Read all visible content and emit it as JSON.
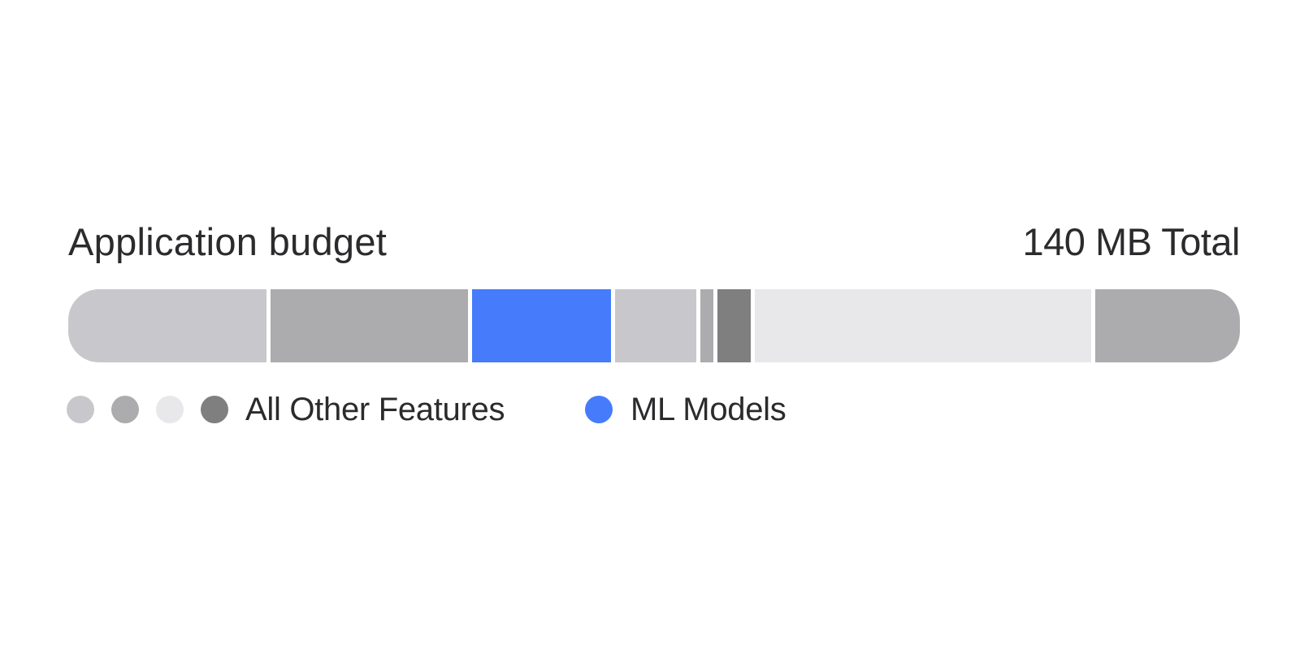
{
  "chart_data": {
    "type": "bar",
    "orientation": "horizontal-stacked",
    "title": "Application budget",
    "total_label": "140 MB Total",
    "total_mb": 140,
    "segments": [
      {
        "series": "All Other Features",
        "value": 23.7,
        "color": "#c8c8cc"
      },
      {
        "series": "All Other Features",
        "value": 23.7,
        "color": "#acacae"
      },
      {
        "series": "ML Models",
        "value": 16.6,
        "color": "#467cfc"
      },
      {
        "series": "All Other Features",
        "value": 9.8,
        "color": "#c8c8cc"
      },
      {
        "series": "All Other Features",
        "value": 1.5,
        "color": "#acacae"
      },
      {
        "series": "All Other Features",
        "value": 4.0,
        "color": "#7f7f7f"
      },
      {
        "series": "All Other Features",
        "value": 40.3,
        "color": "#e8e8ea"
      },
      {
        "series": "All Other Features",
        "value": 17.3,
        "color": "#acacae"
      }
    ],
    "legend": [
      {
        "label": "All Other Features",
        "colors": [
          "#c8c8cc",
          "#acacae",
          "#e8e8ea",
          "#7f7f7f"
        ]
      },
      {
        "label": "ML Models",
        "colors": [
          "#467cfc"
        ]
      }
    ],
    "separator_color": "#ffffff"
  }
}
